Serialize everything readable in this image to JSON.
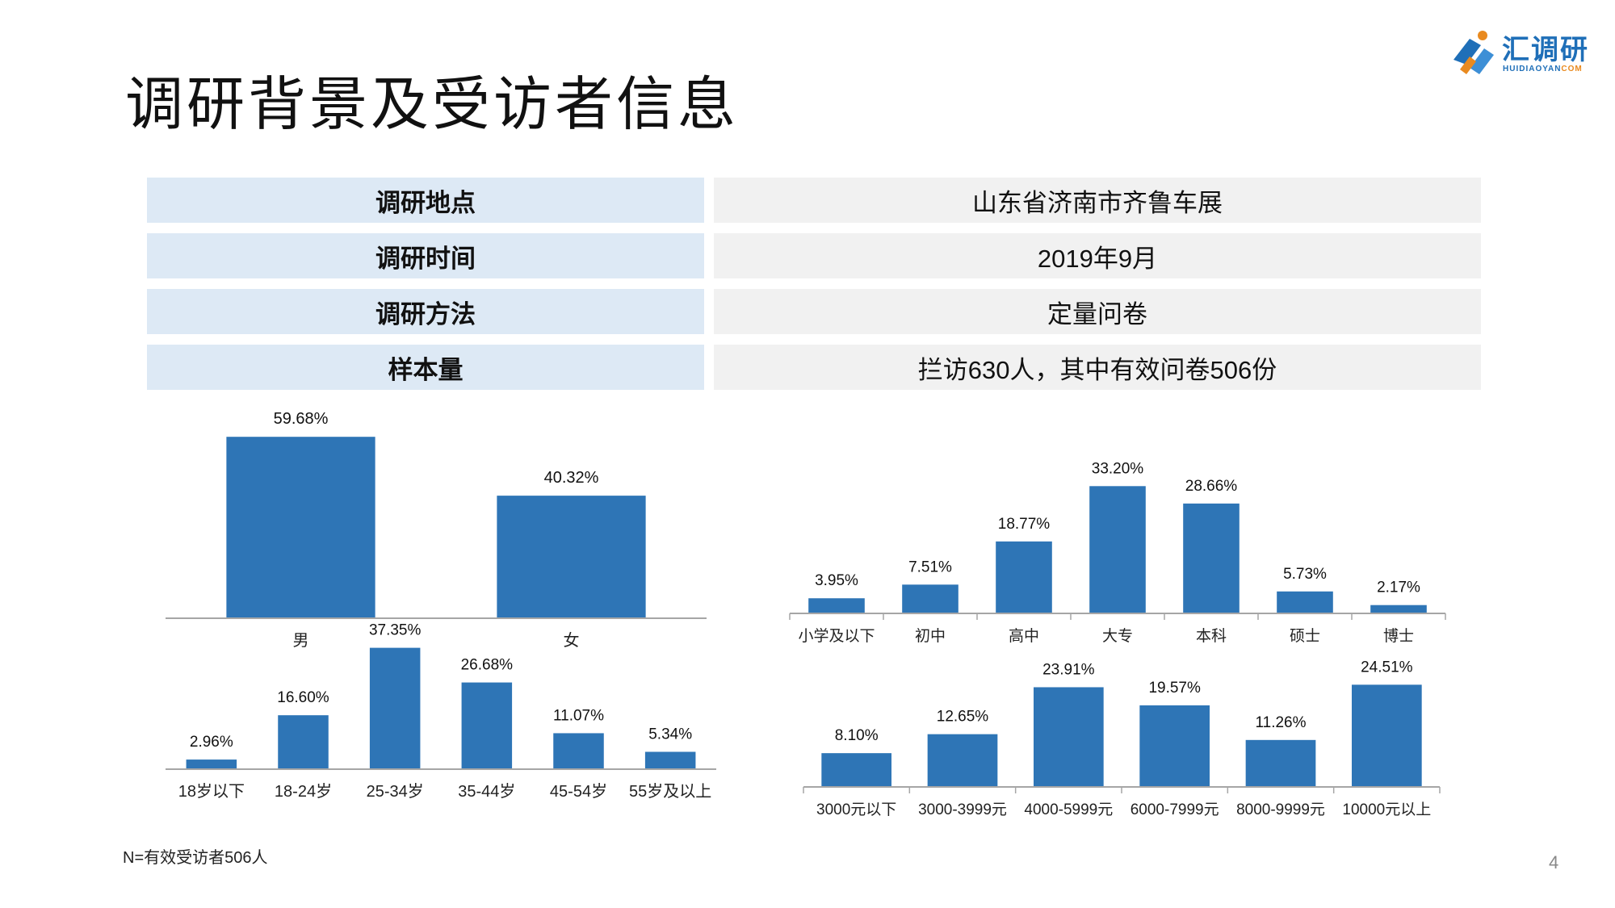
{
  "header": {
    "title": "调研背景及受访者信息"
  },
  "logo": {
    "name": "汇调研",
    "sub_main": "HUIDIAOYAN",
    "sub_accent": "COM",
    "icon": "huidiaoyan-logo-icon"
  },
  "info": {
    "rows": [
      {
        "label": "调研地点",
        "value": "山东省济南市齐鲁车展"
      },
      {
        "label": "调研时间",
        "value": "2019年9月"
      },
      {
        "label": "调研方法",
        "value": "定量问卷"
      },
      {
        "label": "样本量",
        "value": "拦访630人，其中有效问卷506份"
      }
    ]
  },
  "colors": {
    "bar": "#2e75b6",
    "axis": "#a6a6a6",
    "label_bg": "#dde9f5",
    "value_bg": "#f1f1f1"
  },
  "chart_data": [
    {
      "type": "bar",
      "categories": [
        "男",
        "女"
      ],
      "values": [
        59.68,
        40.32
      ],
      "labels": [
        "59.68%",
        "40.32%"
      ],
      "ylim": [
        0,
        60
      ]
    },
    {
      "type": "bar",
      "categories": [
        "小学及以下",
        "初中",
        "高中",
        "大专",
        "本科",
        "硕士",
        "博士"
      ],
      "values": [
        3.95,
        7.51,
        18.77,
        33.2,
        28.66,
        5.73,
        2.17
      ],
      "labels": [
        "3.95%",
        "7.51%",
        "18.77%",
        "33.20%",
        "28.66%",
        "5.73%",
        "2.17%"
      ],
      "ylim": [
        0,
        40
      ]
    },
    {
      "type": "bar",
      "categories": [
        "18岁以下",
        "18-24岁",
        "25-34岁",
        "35-44岁",
        "45-54岁",
        "55岁及以上"
      ],
      "values": [
        2.96,
        16.6,
        37.35,
        26.68,
        11.07,
        5.34
      ],
      "labels": [
        "2.96%",
        "16.60%",
        "37.35%",
        "26.68%",
        "11.07%",
        "5.34%"
      ],
      "ylim": [
        0,
        38
      ]
    },
    {
      "type": "bar",
      "categories": [
        "3000元以下",
        "3000-3999元",
        "4000-5999元",
        "6000-7999元",
        "8000-9999元",
        "10000元以上"
      ],
      "values": [
        8.1,
        12.65,
        23.91,
        19.57,
        11.26,
        24.51
      ],
      "labels": [
        "8.10%",
        "12.65%",
        "23.91%",
        "19.57%",
        "11.26%",
        "24.51%"
      ],
      "ylim": [
        0,
        30
      ]
    }
  ],
  "footer": {
    "note": "N=有效受访者506人",
    "page": "4"
  }
}
